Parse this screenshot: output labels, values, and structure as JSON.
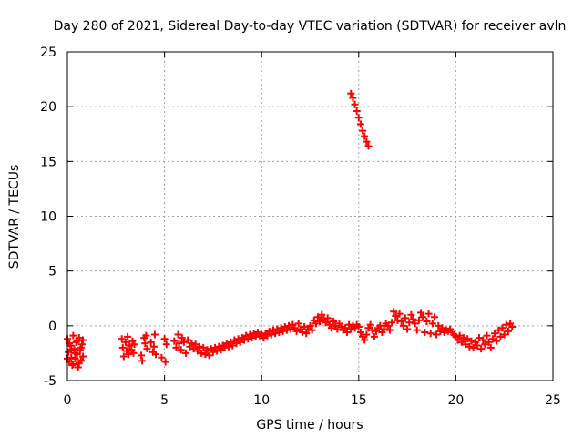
{
  "chart_data": {
    "type": "scatter",
    "title": "Day 280 of 2021, Sidereal Day-to-day VTEC variation (SDTVAR) for receiver avln",
    "xlabel": "GPS time / hours",
    "ylabel": "SDTVAR / TECUs",
    "xlim": [
      0,
      25
    ],
    "ylim": [
      -5,
      25
    ],
    "xticks": [
      0,
      5,
      10,
      15,
      20,
      25
    ],
    "yticks": [
      -5,
      0,
      5,
      10,
      15,
      20,
      25
    ],
    "xtick_labels": [
      "0",
      "5",
      "10",
      "15",
      "20",
      "25"
    ],
    "ytick_labels": [
      "-5",
      "0",
      "5",
      "10",
      "15",
      "20",
      "25"
    ],
    "grid": true,
    "marker": "+",
    "color": "#ff0000",
    "series": [
      {
        "name": "SDTVAR",
        "points": [
          [
            0.0,
            -1.2
          ],
          [
            0.05,
            -2.4
          ],
          [
            0.1,
            -3.3
          ],
          [
            0.15,
            -1.8
          ],
          [
            0.2,
            -2.9
          ],
          [
            0.25,
            -3.6
          ],
          [
            0.3,
            -0.9
          ],
          [
            0.35,
            -2.1
          ],
          [
            0.4,
            -3.0
          ],
          [
            0.45,
            -1.5
          ],
          [
            0.5,
            -2.6
          ],
          [
            0.55,
            -3.8
          ],
          [
            0.6,
            -1.1
          ],
          [
            0.65,
            -2.2
          ],
          [
            0.7,
            -3.2
          ],
          [
            0.75,
            -1.7
          ],
          [
            0.8,
            -2.8
          ],
          [
            0.0,
            -3.0
          ],
          [
            0.1,
            -1.6
          ],
          [
            0.2,
            -2.2
          ],
          [
            0.3,
            -3.5
          ],
          [
            0.4,
            -2.5
          ],
          [
            0.5,
            -1.4
          ],
          [
            0.6,
            -3.4
          ],
          [
            0.7,
            -2.0
          ],
          [
            0.8,
            -1.3
          ],
          [
            2.8,
            -1.2
          ],
          [
            2.85,
            -2.0
          ],
          [
            2.9,
            -2.8
          ],
          [
            3.0,
            -1.5
          ],
          [
            3.05,
            -2.3
          ],
          [
            3.1,
            -1.0
          ],
          [
            3.15,
            -2.6
          ],
          [
            3.2,
            -1.8
          ],
          [
            3.3,
            -2.2
          ],
          [
            3.35,
            -1.4
          ],
          [
            3.4,
            -2.5
          ],
          [
            3.45,
            -1.7
          ],
          [
            3.8,
            -2.7
          ],
          [
            3.85,
            -3.2
          ],
          [
            3.95,
            -1.1
          ],
          [
            4.0,
            -1.6
          ],
          [
            4.05,
            -0.9
          ],
          [
            4.1,
            -2.1
          ],
          [
            4.3,
            -1.5
          ],
          [
            4.4,
            -2.4
          ],
          [
            4.45,
            -1.9
          ],
          [
            4.5,
            -0.8
          ],
          [
            4.55,
            -2.6
          ],
          [
            4.85,
            -2.9
          ],
          [
            5.0,
            -1.2
          ],
          [
            5.05,
            -3.3
          ],
          [
            5.1,
            -1.7
          ],
          [
            5.5,
            -1.4
          ],
          [
            5.6,
            -2.0
          ],
          [
            5.7,
            -0.8
          ],
          [
            5.75,
            -1.6
          ],
          [
            5.85,
            -2.2
          ],
          [
            5.9,
            -1.1
          ],
          [
            6.0,
            -1.5
          ],
          [
            6.1,
            -2.5
          ],
          [
            6.2,
            -1.3
          ],
          [
            6.3,
            -1.9
          ],
          [
            6.4,
            -1.6
          ],
          [
            6.5,
            -2.1
          ],
          [
            6.6,
            -1.7
          ],
          [
            6.7,
            -2.3
          ],
          [
            6.8,
            -1.9
          ],
          [
            6.9,
            -2.5
          ],
          [
            7.0,
            -2.0
          ],
          [
            7.1,
            -2.6
          ],
          [
            7.2,
            -2.2
          ],
          [
            7.3,
            -2.7
          ],
          [
            7.4,
            -2.1
          ],
          [
            7.5,
            -2.4
          ],
          [
            7.6,
            -2.0
          ],
          [
            7.7,
            -2.3
          ],
          [
            7.8,
            -1.9
          ],
          [
            7.9,
            -2.2
          ],
          [
            8.0,
            -1.8
          ],
          [
            8.1,
            -2.0
          ],
          [
            8.2,
            -1.6
          ],
          [
            8.3,
            -1.9
          ],
          [
            8.4,
            -1.5
          ],
          [
            8.5,
            -1.8
          ],
          [
            8.6,
            -1.3
          ],
          [
            8.7,
            -1.6
          ],
          [
            8.8,
            -1.2
          ],
          [
            8.9,
            -1.5
          ],
          [
            9.0,
            -1.1
          ],
          [
            9.1,
            -1.3
          ],
          [
            9.2,
            -0.9
          ],
          [
            9.3,
            -1.2
          ],
          [
            9.4,
            -0.8
          ],
          [
            9.5,
            -1.1
          ],
          [
            9.6,
            -0.7
          ],
          [
            9.7,
            -1.0
          ],
          [
            9.8,
            -0.6
          ],
          [
            9.9,
            -0.9
          ],
          [
            10.0,
            -0.8
          ],
          [
            10.1,
            -1.1
          ],
          [
            10.2,
            -0.7
          ],
          [
            10.3,
            -0.9
          ],
          [
            10.4,
            -0.5
          ],
          [
            10.5,
            -0.8
          ],
          [
            10.6,
            -0.4
          ],
          [
            10.7,
            -0.7
          ],
          [
            10.8,
            -0.3
          ],
          [
            10.9,
            -0.6
          ],
          [
            11.0,
            -0.2
          ],
          [
            11.1,
            -0.5
          ],
          [
            11.2,
            -0.1
          ],
          [
            11.3,
            -0.4
          ],
          [
            11.4,
            0.0
          ],
          [
            11.5,
            -0.3
          ],
          [
            11.6,
            0.1
          ],
          [
            11.7,
            -0.2
          ],
          [
            11.8,
            -0.5
          ],
          [
            11.9,
            0.2
          ],
          [
            12.0,
            -0.3
          ],
          [
            12.1,
            -0.6
          ],
          [
            12.2,
            -0.1
          ],
          [
            12.3,
            -0.7
          ],
          [
            12.4,
            -0.3
          ],
          [
            12.5,
            0.0
          ],
          [
            12.6,
            -0.4
          ],
          [
            12.7,
            0.5
          ],
          [
            12.8,
            0.2
          ],
          [
            12.9,
            0.8
          ],
          [
            13.0,
            0.4
          ],
          [
            13.1,
            1.0
          ],
          [
            13.2,
            0.6
          ],
          [
            13.3,
            0.3
          ],
          [
            13.4,
            0.7
          ],
          [
            13.5,
            0.1
          ],
          [
            13.6,
            -0.2
          ],
          [
            13.7,
            0.4
          ],
          [
            13.8,
            0.0
          ],
          [
            13.9,
            -0.3
          ],
          [
            14.0,
            0.2
          ],
          [
            14.1,
            -0.1
          ],
          [
            14.2,
            -0.4
          ],
          [
            14.3,
            -0.2
          ],
          [
            14.4,
            -0.6
          ],
          [
            14.5,
            0.1
          ],
          [
            14.6,
            -0.3
          ],
          [
            14.7,
            0.0
          ],
          [
            14.8,
            -0.2
          ],
          [
            14.9,
            0.1
          ],
          [
            15.0,
            -0.1
          ],
          [
            15.1,
            -0.6
          ],
          [
            15.2,
            -1.0
          ],
          [
            15.3,
            -1.3
          ],
          [
            15.4,
            -0.8
          ],
          [
            15.5,
            -0.2
          ],
          [
            15.6,
            0.1
          ],
          [
            15.7,
            -0.4
          ],
          [
            15.8,
            -1.0
          ],
          [
            15.9,
            -0.5
          ],
          [
            16.0,
            -0.2
          ],
          [
            16.1,
            0.0
          ],
          [
            16.2,
            -0.6
          ],
          [
            16.3,
            -0.3
          ],
          [
            16.4,
            0.2
          ],
          [
            16.5,
            0.0
          ],
          [
            16.6,
            -0.4
          ],
          [
            16.7,
            0.3
          ],
          [
            16.8,
            1.3
          ],
          [
            16.9,
            0.9
          ],
          [
            17.0,
            0.5
          ],
          [
            17.1,
            1.1
          ],
          [
            17.2,
            0.4
          ],
          [
            17.3,
            0.0
          ],
          [
            17.4,
            0.7
          ],
          [
            17.5,
            -0.3
          ],
          [
            17.6,
            0.3
          ],
          [
            17.7,
            1.0
          ],
          [
            17.8,
            0.6
          ],
          [
            17.9,
            0.2
          ],
          [
            18.0,
            -0.4
          ],
          [
            18.1,
            0.5
          ],
          [
            18.2,
            1.2
          ],
          [
            18.3,
            0.8
          ],
          [
            18.4,
            -0.6
          ],
          [
            18.5,
            0.4
          ],
          [
            18.6,
            1.1
          ],
          [
            18.7,
            -0.7
          ],
          [
            18.8,
            0.2
          ],
          [
            18.9,
            0.8
          ],
          [
            19.0,
            -0.8
          ],
          [
            19.1,
            0.0
          ],
          [
            19.2,
            -0.5
          ],
          [
            19.3,
            -0.2
          ],
          [
            19.4,
            -0.6
          ],
          [
            19.5,
            -0.4
          ],
          [
            19.6,
            -0.5
          ],
          [
            19.7,
            -0.3
          ],
          [
            19.8,
            -0.6
          ],
          [
            19.9,
            -0.8
          ],
          [
            20.0,
            -1.0
          ],
          [
            20.1,
            -1.3
          ],
          [
            20.2,
            -0.9
          ],
          [
            20.3,
            -1.5
          ],
          [
            20.4,
            -1.1
          ],
          [
            20.5,
            -1.7
          ],
          [
            20.6,
            -1.2
          ],
          [
            20.7,
            -1.9
          ],
          [
            20.8,
            -1.4
          ],
          [
            20.9,
            -2.0
          ],
          [
            21.0,
            -1.5
          ],
          [
            21.1,
            -1.8
          ],
          [
            21.2,
            -1.1
          ],
          [
            21.3,
            -2.1
          ],
          [
            21.4,
            -1.3
          ],
          [
            21.5,
            -1.7
          ],
          [
            21.6,
            -0.9
          ],
          [
            21.7,
            -1.5
          ],
          [
            21.8,
            -2.0
          ],
          [
            21.9,
            -1.2
          ],
          [
            22.0,
            -0.7
          ],
          [
            22.1,
            -1.4
          ],
          [
            22.2,
            -0.4
          ],
          [
            22.3,
            -1.0
          ],
          [
            22.4,
            -0.2
          ],
          [
            22.5,
            -0.8
          ],
          [
            22.6,
            0.1
          ],
          [
            22.7,
            -0.5
          ],
          [
            22.8,
            0.2
          ],
          [
            22.9,
            -0.1
          ],
          [
            14.6,
            21.2
          ],
          [
            14.7,
            20.8
          ],
          [
            14.8,
            20.2
          ],
          [
            14.9,
            19.6
          ],
          [
            15.0,
            19.0
          ],
          [
            15.1,
            18.4
          ],
          [
            15.2,
            17.8
          ],
          [
            15.3,
            17.3
          ],
          [
            15.4,
            16.8
          ],
          [
            15.5,
            16.4
          ]
        ]
      }
    ]
  }
}
